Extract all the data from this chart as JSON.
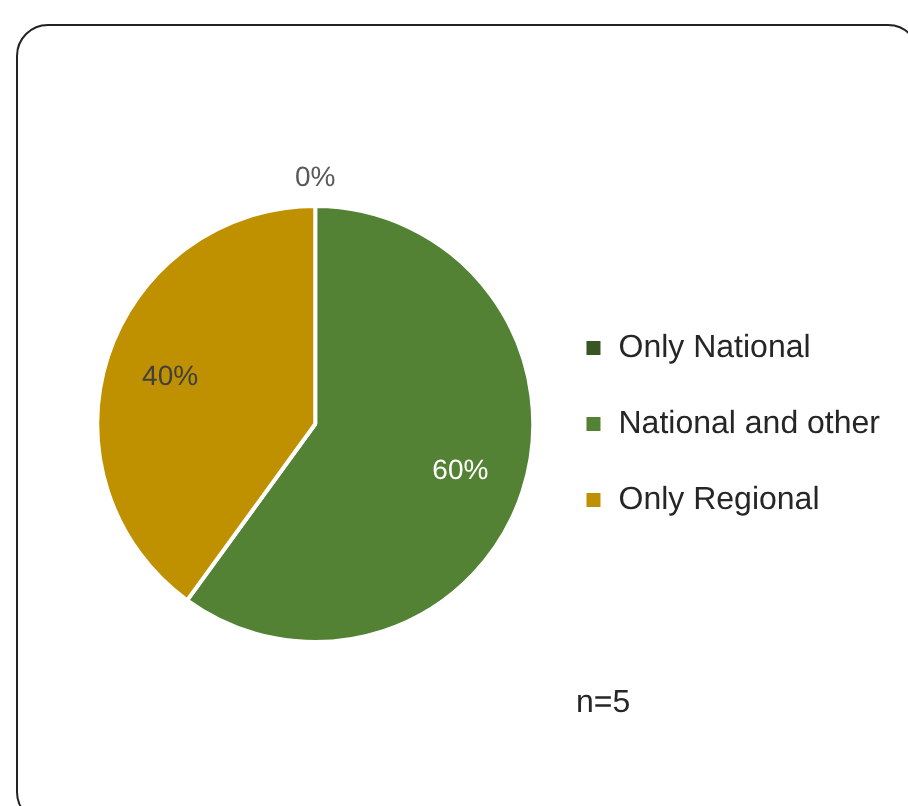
{
  "chart_data": {
    "type": "pie",
    "categories": [
      "Only National",
      "National and other",
      "Only Regional"
    ],
    "values": [
      0,
      60,
      40
    ],
    "colors": [
      "#375623",
      "#548235",
      "#bf9000"
    ],
    "value_labels": [
      "0%",
      "60%",
      "40%"
    ],
    "legend": "right",
    "annotations": [
      "n=5"
    ]
  }
}
